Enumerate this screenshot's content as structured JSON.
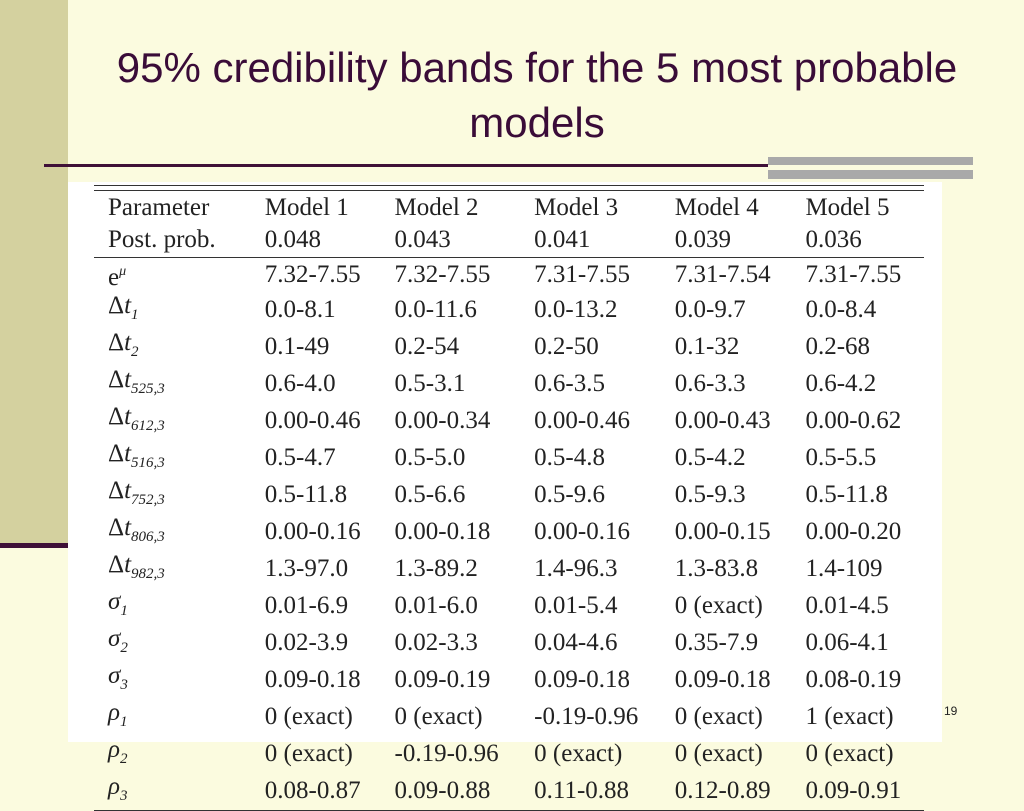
{
  "slide": {
    "title": "95% credibility bands for the 5 most probable models",
    "page_number": "19"
  },
  "table": {
    "header": {
      "label": "Parameter",
      "models": [
        "Model 1",
        "Model 2",
        "Model 3",
        "Model 4",
        "Model 5"
      ]
    },
    "post_prob": {
      "label": "Post. prob.",
      "values": [
        "0.048",
        "0.043",
        "0.041",
        "0.039",
        "0.036"
      ]
    },
    "rows": [
      {
        "symbol": "e",
        "sup": "μ",
        "sub": "",
        "values": [
          "7.32-7.55",
          "7.32-7.55",
          "7.31-7.55",
          "7.31-7.54",
          "7.31-7.55"
        ]
      },
      {
        "symbol": "Δt",
        "sup": "",
        "sub": "1",
        "values": [
          "0.0-8.1",
          "0.0-11.6",
          "0.0-13.2",
          "0.0-9.7",
          "0.0-8.4"
        ]
      },
      {
        "symbol": "Δt",
        "sup": "",
        "sub": "2",
        "values": [
          "0.1-49",
          "0.2-54",
          "0.2-50",
          "0.1-32",
          "0.2-68"
        ]
      },
      {
        "symbol": "Δt",
        "sup": "",
        "sub": "525,3",
        "values": [
          "0.6-4.0",
          "0.5-3.1",
          "0.6-3.5",
          "0.6-3.3",
          "0.6-4.2"
        ]
      },
      {
        "symbol": "Δt",
        "sup": "",
        "sub": "612,3",
        "values": [
          "0.00-0.46",
          "0.00-0.34",
          "0.00-0.46",
          "0.00-0.43",
          "0.00-0.62"
        ]
      },
      {
        "symbol": "Δt",
        "sup": "",
        "sub": "516,3",
        "values": [
          "0.5-4.7",
          "0.5-5.0",
          "0.5-4.8",
          "0.5-4.2",
          "0.5-5.5"
        ]
      },
      {
        "symbol": "Δt",
        "sup": "",
        "sub": "752,3",
        "values": [
          "0.5-11.8",
          "0.5-6.6",
          "0.5-9.6",
          "0.5-9.3",
          "0.5-11.8"
        ]
      },
      {
        "symbol": "Δt",
        "sup": "",
        "sub": "806,3",
        "values": [
          "0.00-0.16",
          "0.00-0.18",
          "0.00-0.16",
          "0.00-0.15",
          "0.00-0.20"
        ]
      },
      {
        "symbol": "Δt",
        "sup": "",
        "sub": "982,3",
        "values": [
          "1.3-97.0",
          "1.3-89.2",
          "1.4-96.3",
          "1.3-83.8",
          "1.4-109"
        ]
      },
      {
        "symbol": "σ",
        "sup": "",
        "sub": "1",
        "values": [
          "0.01-6.9",
          "0.01-6.0",
          "0.01-5.4",
          "0 (exact)",
          "0.01-4.5"
        ]
      },
      {
        "symbol": "σ",
        "sup": "",
        "sub": "2",
        "values": [
          "0.02-3.9",
          "0.02-3.3",
          "0.04-4.6",
          "0.35-7.9",
          "0.06-4.1"
        ]
      },
      {
        "symbol": "σ",
        "sup": "",
        "sub": "3",
        "values": [
          "0.09-0.18",
          "0.09-0.19",
          "0.09-0.18",
          "0.09-0.18",
          "0.08-0.19"
        ]
      },
      {
        "symbol": "ρ",
        "sup": "",
        "sub": "1",
        "values": [
          "0 (exact)",
          "0 (exact)",
          "-0.19-0.96",
          "0 (exact)",
          "1 (exact)"
        ]
      },
      {
        "symbol": "ρ",
        "sup": "",
        "sub": "2",
        "values": [
          "0 (exact)",
          "-0.19-0.96",
          "0 (exact)",
          "0 (exact)",
          "0 (exact)"
        ]
      },
      {
        "symbol": "ρ",
        "sup": "",
        "sub": "3",
        "values": [
          "0.08-0.87",
          "0.09-0.88",
          "0.11-0.88",
          "0.12-0.89",
          "0.09-0.91"
        ]
      }
    ]
  },
  "colors": {
    "background": "#fbfbdf",
    "sidebar": "#d4d19f",
    "title_text": "#3a0c38",
    "rule": "#3f1037",
    "accent_gray": "#a9a9a9"
  }
}
